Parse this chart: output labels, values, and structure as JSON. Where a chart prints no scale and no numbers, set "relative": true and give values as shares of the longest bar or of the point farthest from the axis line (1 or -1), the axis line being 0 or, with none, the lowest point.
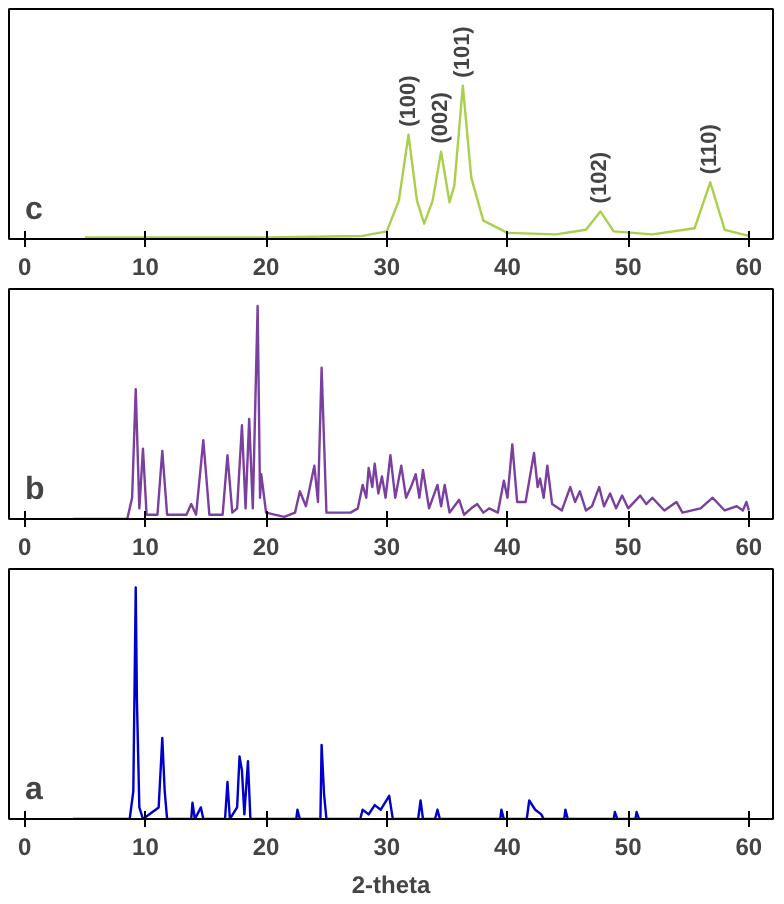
{
  "chart_data": [
    {
      "type": "line",
      "relative": true,
      "color": "#a8d04a",
      "xlim": [
        -1.3,
        62
      ],
      "xticks": [
        0,
        10,
        20,
        30,
        40,
        50,
        60
      ],
      "grid": false,
      "x": [
        5,
        20,
        28,
        30,
        31,
        31.8,
        32.5,
        33.1,
        33.8,
        34.5,
        35.2,
        35.6,
        36.3,
        37,
        38,
        40,
        44,
        46.5,
        47.7,
        48.8,
        52,
        55.5,
        56.8,
        58,
        60
      ],
      "values": [
        0.01,
        0.01,
        0.02,
        0.05,
        0.25,
        0.68,
        0.25,
        0.1,
        0.25,
        0.57,
        0.24,
        0.35,
        1.0,
        0.4,
        0.12,
        0.04,
        0.03,
        0.06,
        0.18,
        0.05,
        0.03,
        0.07,
        0.37,
        0.06,
        0.02
      ],
      "annotations": [
        "c",
        {
          "text": "(100)",
          "x": 31.8,
          "y": 0.68
        },
        {
          "text": "(002)",
          "x": 34.5,
          "y": 0.57
        },
        {
          "text": "(101)",
          "x": 36.3,
          "y": 1.0
        },
        {
          "text": "(102)",
          "x": 47.7,
          "y": 0.18
        },
        {
          "text": "(110)",
          "x": 56.8,
          "y": 0.37
        }
      ]
    },
    {
      "type": "line",
      "relative": true,
      "color": "#7b3fa0",
      "xlim": [
        -1.3,
        62
      ],
      "xticks": [
        0,
        10,
        20,
        30,
        40,
        50,
        60
      ],
      "grid": false,
      "x": [
        4,
        8.5,
        8.9,
        9.2,
        9.5,
        9.8,
        10.1,
        11.0,
        11.4,
        11.8,
        13.4,
        13.8,
        14.2,
        14.8,
        15.3,
        16.4,
        16.8,
        17.2,
        17.6,
        18.0,
        18.3,
        18.6,
        18.9,
        19.3,
        19.5,
        19.6,
        20.0,
        21.5,
        22.4,
        22.8,
        23.3,
        24.0,
        24.3,
        24.6,
        25.0,
        27.0,
        27.6,
        28.0,
        28.3,
        28.5,
        28.8,
        29.0,
        29.3,
        29.6,
        29.9,
        30.3,
        30.7,
        31.2,
        31.6,
        32.0,
        32.4,
        32.7,
        33.0,
        33.5,
        34.2,
        34.5,
        34.8,
        35.2,
        36.0,
        36.4,
        37.0,
        37.5,
        38,
        38.5,
        39.2,
        39.7,
        40.0,
        40.4,
        40.8,
        41.5,
        42.2,
        42.5,
        42.7,
        43.0,
        43.3,
        43.7,
        44.5,
        45.2,
        45.6,
        46.0,
        46.5,
        47.0,
        47.6,
        48.0,
        48.5,
        49.0,
        49.5,
        50.0,
        51.0,
        51.5,
        52.0,
        53,
        54,
        54.5,
        56,
        57,
        58,
        59,
        59.5,
        59.8,
        60
      ],
      "values": [
        0,
        0,
        0.1,
        0.61,
        0.05,
        0.33,
        0.02,
        0.02,
        0.32,
        0.02,
        0.02,
        0.07,
        0.02,
        0.37,
        0.02,
        0.02,
        0.3,
        0.03,
        0.05,
        0.44,
        0.05,
        0.47,
        0.05,
        1.0,
        0.1,
        0.21,
        0.03,
        0.01,
        0.03,
        0.13,
        0.06,
        0.25,
        0.08,
        0.71,
        0.03,
        0.03,
        0.05,
        0.16,
        0.1,
        0.24,
        0.15,
        0.26,
        0.12,
        0.2,
        0.1,
        0.3,
        0.1,
        0.25,
        0.1,
        0.15,
        0.21,
        0.1,
        0.23,
        0.05,
        0.16,
        0.06,
        0.16,
        0.03,
        0.09,
        0.02,
        0.05,
        0.07,
        0.03,
        0.05,
        0.03,
        0.18,
        0.1,
        0.35,
        0.08,
        0.08,
        0.31,
        0.15,
        0.19,
        0.1,
        0.25,
        0.07,
        0.04,
        0.15,
        0.08,
        0.13,
        0.04,
        0.06,
        0.15,
        0.06,
        0.12,
        0.05,
        0.11,
        0.05,
        0.11,
        0.07,
        0.1,
        0.04,
        0.08,
        0.03,
        0.05,
        0.1,
        0.04,
        0.06,
        0.04,
        0.08,
        0.04
      ],
      "annotations": [
        "b"
      ]
    },
    {
      "type": "line",
      "relative": true,
      "color": "#0000cc",
      "xlim": [
        -1.3,
        62
      ],
      "xticks": [
        0,
        10,
        20,
        30,
        40,
        50,
        60
      ],
      "grid": false,
      "xlabel": "2-theta",
      "x": [
        4,
        8.7,
        9.0,
        9.2,
        9.3,
        9.5,
        9.8,
        11.1,
        11.4,
        11.6,
        11.8,
        13.8,
        13.9,
        14.1,
        14.6,
        14.8,
        16.6,
        16.8,
        17.0,
        17.6,
        17.8,
        18.0,
        18.2,
        18.5,
        18.7,
        22.5,
        22.6,
        22.8,
        24.5,
        24.6,
        24.8,
        25.0,
        27.8,
        28.0,
        28.5,
        29.0,
        29.5,
        30.2,
        30.5,
        32.6,
        32.8,
        33.0,
        34.0,
        34.2,
        34.4,
        39.4,
        39.5,
        39.7,
        41.6,
        41.8,
        42.3,
        42.8,
        43.0,
        44.7,
        44.8,
        45.0,
        48.8,
        48.9,
        49.1,
        50.6,
        50.7,
        50.9,
        60
      ],
      "values": [
        0,
        0,
        0.12,
        1.0,
        0.51,
        0.05,
        0,
        0.05,
        0.35,
        0.12,
        0,
        0,
        0.07,
        0,
        0.05,
        0,
        0,
        0.16,
        0,
        0.05,
        0.27,
        0.21,
        0.02,
        0.25,
        0,
        0,
        0.04,
        0,
        0,
        0.32,
        0.11,
        0,
        0,
        0.04,
        0.02,
        0.06,
        0.04,
        0.1,
        0,
        0,
        0.08,
        0,
        0,
        0.04,
        0,
        0,
        0.04,
        0,
        0,
        0.08,
        0.04,
        0.02,
        0,
        0,
        0.04,
        0,
        0,
        0.03,
        0,
        0,
        0.03,
        0,
        0
      ],
      "annotations": [
        "a"
      ]
    }
  ]
}
